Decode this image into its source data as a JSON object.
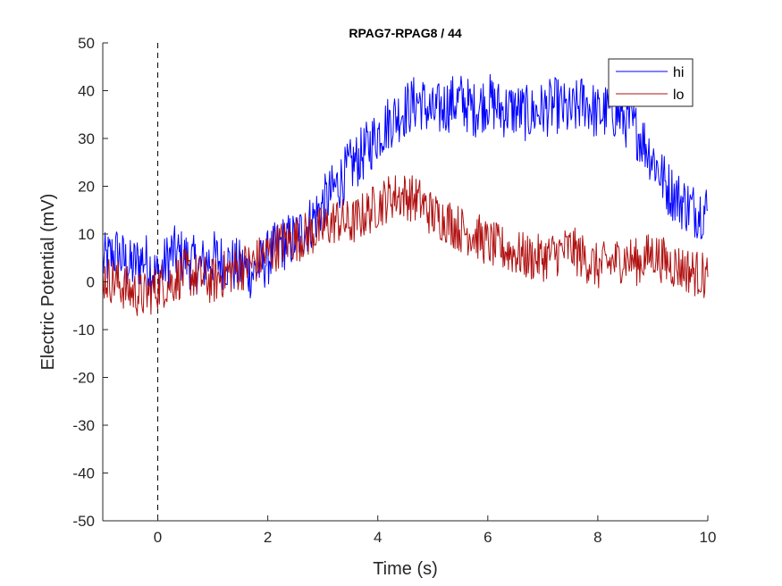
{
  "chart_data": {
    "type": "line",
    "title": "RPAG7-RPAG8 / 44",
    "xlabel": "Time (s)",
    "ylabel": "Electric Potential (mV)",
    "xlim": [
      -1,
      10
    ],
    "ylim": [
      -50,
      50
    ],
    "xticks": [
      0,
      2,
      4,
      6,
      8,
      10
    ],
    "yticks": [
      -50,
      -40,
      -30,
      -20,
      -10,
      0,
      10,
      20,
      30,
      40,
      50
    ],
    "grid": false,
    "legend_position": "top-right",
    "event_marker": {
      "x": 0,
      "style": "dashed"
    },
    "series": [
      {
        "name": "hi",
        "color": "#0000ff",
        "x": [
          -1.0,
          -0.75,
          -0.5,
          -0.25,
          0.0,
          0.25,
          0.5,
          0.75,
          1.0,
          1.25,
          1.5,
          1.75,
          2.0,
          2.25,
          2.5,
          2.75,
          3.0,
          3.25,
          3.5,
          3.75,
          4.0,
          4.25,
          4.5,
          4.75,
          5.0,
          5.25,
          5.5,
          5.75,
          6.0,
          6.25,
          6.5,
          6.75,
          7.0,
          7.25,
          7.5,
          7.75,
          8.0,
          8.25,
          8.5,
          8.75,
          9.0,
          9.25,
          9.5,
          9.75,
          10.0
        ],
        "y": [
          4,
          6,
          3,
          5,
          1,
          6,
          5,
          3,
          5,
          4,
          3,
          2,
          5,
          8,
          9,
          12,
          16,
          20,
          24,
          27,
          31,
          34,
          36,
          38,
          35,
          37,
          38,
          36,
          38,
          36,
          36,
          35,
          36,
          37,
          35,
          38,
          35,
          36,
          34,
          31,
          26,
          20,
          17,
          15,
          15
        ]
      },
      {
        "name": "lo",
        "color": "#b01010",
        "x": [
          -1.0,
          -0.75,
          -0.5,
          -0.25,
          0.0,
          0.25,
          0.5,
          0.75,
          1.0,
          1.25,
          1.5,
          1.75,
          2.0,
          2.25,
          2.5,
          2.75,
          3.0,
          3.25,
          3.5,
          3.75,
          4.0,
          4.25,
          4.5,
          4.75,
          5.0,
          5.25,
          5.5,
          5.75,
          6.0,
          6.25,
          6.5,
          6.75,
          7.0,
          7.25,
          7.5,
          7.75,
          8.0,
          8.25,
          8.5,
          8.75,
          9.0,
          9.25,
          9.5,
          9.75,
          10.0
        ],
        "y": [
          1,
          0,
          -2,
          -3,
          -1,
          0,
          2,
          1,
          0,
          2,
          3,
          4,
          6,
          8,
          9,
          10,
          11,
          13,
          12,
          14,
          16,
          18,
          18,
          17,
          14,
          13,
          11,
          10,
          8,
          7,
          6,
          5,
          5,
          6,
          7,
          5,
          3,
          4,
          5,
          4,
          6,
          4,
          3,
          2,
          1
        ]
      }
    ]
  }
}
